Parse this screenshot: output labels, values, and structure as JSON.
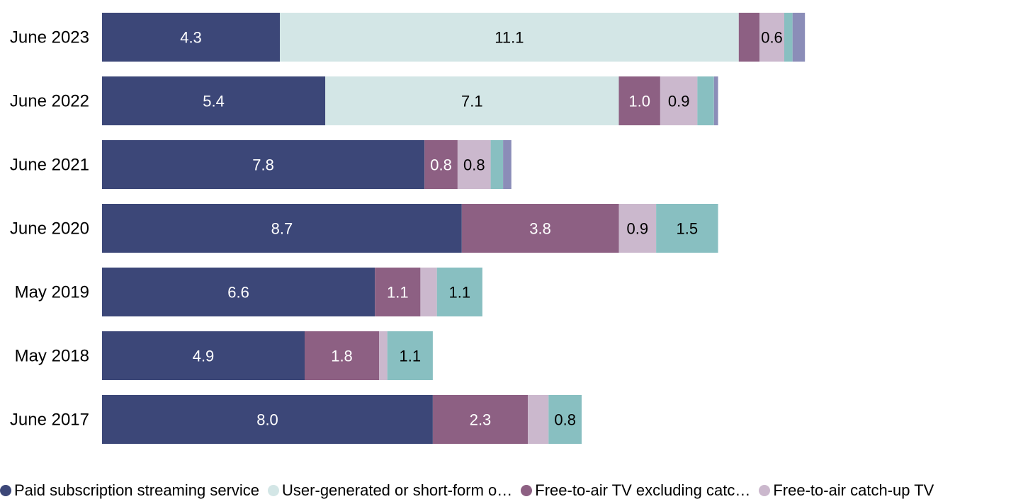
{
  "chart_data": {
    "type": "bar",
    "orientation": "horizontal",
    "stacked": true,
    "categories": [
      "June 2023",
      "June 2022",
      "June 2021",
      "June 2020",
      "May 2019",
      "May 2018",
      "June 2017"
    ],
    "series": [
      {
        "name": "Paid subscription streaming service",
        "color": "#3c4778",
        "label_color": "#ffffff",
        "values": [
          4.3,
          5.4,
          7.8,
          8.7,
          6.6,
          4.9,
          8.0
        ],
        "labels": [
          "4.3",
          "5.4",
          "7.8",
          "8.7",
          "6.6",
          "4.9",
          "8.0"
        ]
      },
      {
        "name": "User-generated or short-form o…",
        "color": "#d3e6e6",
        "label_color": "#000000",
        "values": [
          11.1,
          7.1,
          0,
          0,
          0,
          0,
          0
        ],
        "labels": [
          "11.1",
          "7.1",
          "",
          "",
          "",
          "",
          ""
        ]
      },
      {
        "name": "Free-to-air TV excluding catc…",
        "color": "#8d6083",
        "label_color": "#ffffff",
        "values": [
          0.5,
          1.0,
          0.8,
          3.8,
          1.1,
          1.8,
          2.3
        ],
        "labels": [
          "",
          "1.0",
          "0.8",
          "3.8",
          "1.1",
          "1.8",
          "2.3"
        ]
      },
      {
        "name": "Free-to-air catch-up TV",
        "color": "#cbb8cd",
        "label_color": "#000000",
        "values": [
          0.6,
          0.9,
          0.8,
          0.9,
          0.4,
          0.2,
          0.5
        ],
        "labels": [
          "0.6",
          "0.9",
          "0.8",
          "0.9",
          "",
          "",
          ""
        ]
      },
      {
        "name": "",
        "color": "#88bfc1",
        "label_color": "#000000",
        "values": [
          0.2,
          0.4,
          0.3,
          1.5,
          1.1,
          1.1,
          0.8
        ],
        "labels": [
          "",
          "",
          "",
          "1.5",
          "1.1",
          "1.1",
          "0.8"
        ]
      },
      {
        "name": "",
        "color": "#8b8db8",
        "label_color": "#000000",
        "values": [
          0.3,
          0.1,
          0.2,
          0,
          0,
          0,
          0
        ],
        "labels": [
          "",
          "",
          "",
          "",
          "",
          "",
          ""
        ]
      }
    ],
    "xlim": [
      0,
      17.1
    ],
    "grid": false,
    "legend_position": "bottom"
  }
}
